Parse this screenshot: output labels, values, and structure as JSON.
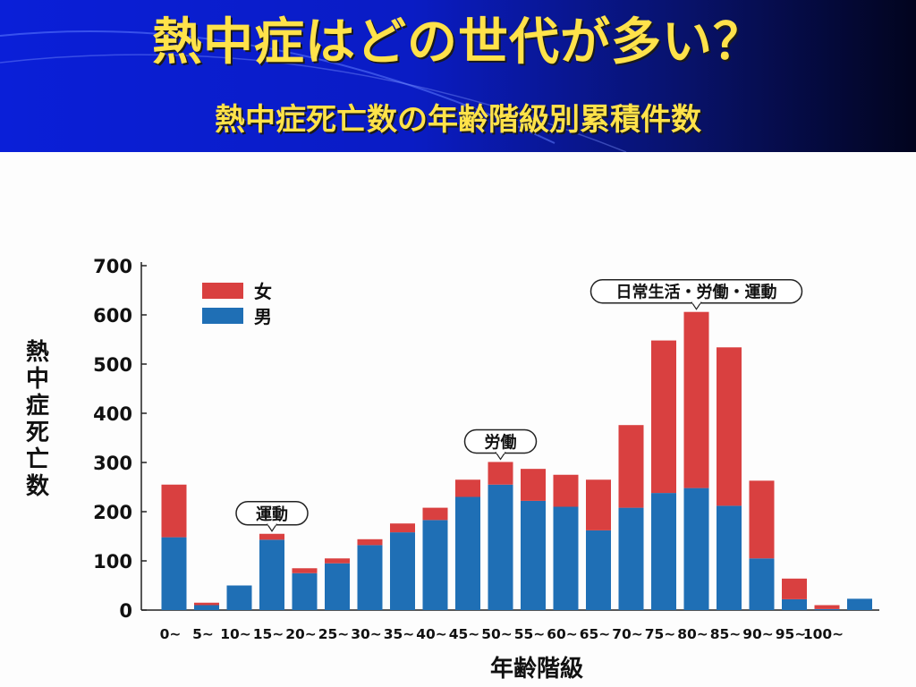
{
  "slide": {
    "title": "熱中症はどの世代が多い？",
    "subtitle": "熱中症死亡数の年齢階級別累積件数"
  },
  "colors": {
    "female": "#d94040",
    "male": "#1f6fb5",
    "header_start": "#0a1fd8",
    "header_end": "#02041e",
    "title_text": "#ffe24a"
  },
  "chart_data": {
    "type": "bar",
    "stacked": true,
    "categories": [
      "0~",
      "5~",
      "10~",
      "15~",
      "20~",
      "25~",
      "30~",
      "35~",
      "40~",
      "45~",
      "50~",
      "55~",
      "60~",
      "65~",
      "70~",
      "75~",
      "80~",
      "85~",
      "90~",
      "95~",
      "100~",
      ""
    ],
    "series": [
      {
        "name": "男",
        "values": [
          148,
          10,
          50,
          143,
          75,
          95,
          132,
          158,
          183,
          230,
          255,
          222,
          210,
          162,
          208,
          238,
          248,
          212,
          105,
          22,
          2,
          23
        ]
      },
      {
        "name": "女",
        "values": [
          107,
          5,
          0,
          12,
          10,
          10,
          12,
          18,
          25,
          35,
          46,
          65,
          65,
          103,
          168,
          310,
          358,
          322,
          158,
          42,
          8,
          0
        ]
      }
    ],
    "xlabel": "年齢階級",
    "ylabel": "熱中症死亡数",
    "ylim": [
      0,
      700
    ],
    "yticks": [
      0,
      100,
      200,
      300,
      400,
      500,
      600,
      700
    ],
    "legend_position": "top-left",
    "grid": false,
    "annotations": [
      {
        "text": "運動",
        "category": "15~"
      },
      {
        "text": "労働",
        "category": "50~"
      },
      {
        "text": "日常生活・労働・運動",
        "category": "80~"
      }
    ]
  }
}
